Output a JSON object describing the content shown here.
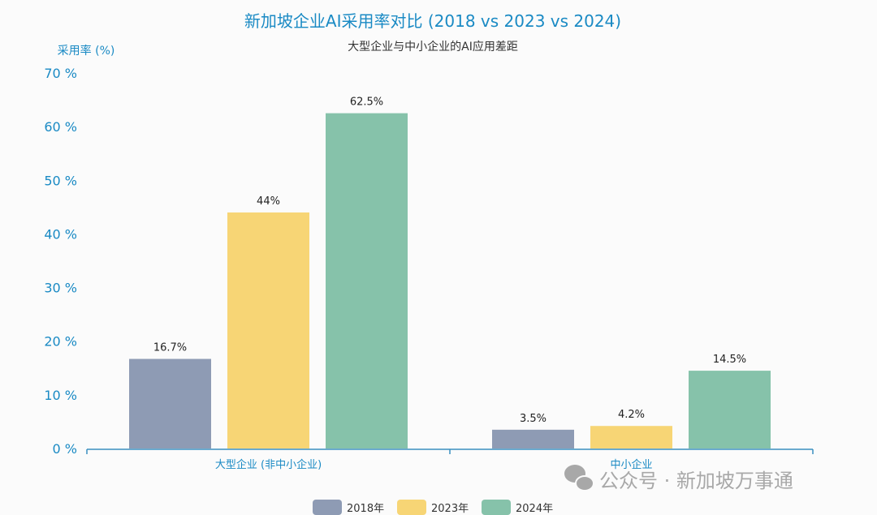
{
  "chart_data": {
    "type": "bar",
    "title": "新加坡企业AI采用率对比 (2018 vs 2023 vs 2024)",
    "subtitle": "大型企业与中小企业的AI应用差距",
    "ylabel": "采用率 (%)",
    "xlabel": "",
    "ylim": [
      0,
      70
    ],
    "yticks": [
      0,
      10,
      20,
      30,
      40,
      50,
      60,
      70
    ],
    "ytick_labels": [
      "0 %",
      "10 %",
      "20 %",
      "30 %",
      "40 %",
      "50 %",
      "60 %",
      "70 %"
    ],
    "categories": [
      "大型企业 (非中小企业)",
      "中小企业"
    ],
    "grid": false,
    "legend": "bottom",
    "series": [
      {
        "name": "2018年",
        "values": [
          16.7,
          3.5
        ],
        "labels": [
          "16.7%",
          "3.5%"
        ],
        "color": "#8e9bb4"
      },
      {
        "name": "2023年",
        "values": [
          44,
          4.2
        ],
        "labels": [
          "44%",
          "4.2%"
        ],
        "color": "#f7d575"
      },
      {
        "name": "2024年",
        "values": [
          62.5,
          14.5
        ],
        "labels": [
          "62.5%",
          "14.5%"
        ],
        "color": "#86c2aa"
      }
    ],
    "axis_color": "#3a8fc0"
  },
  "watermark": "公众号 · 新加坡万事通"
}
